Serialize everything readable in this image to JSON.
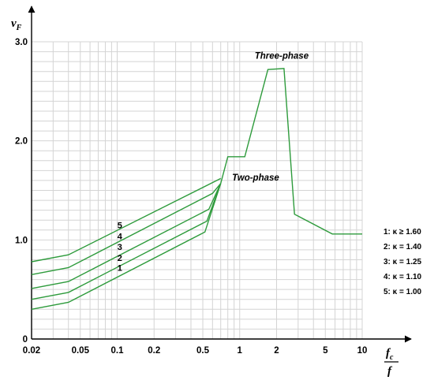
{
  "chart_data": {
    "type": "line",
    "title": "",
    "xlabel": {
      "num": "f",
      "num_sub": "c",
      "den": "f"
    },
    "ylabel": {
      "main": "v",
      "sub": "F"
    },
    "xscale": "log",
    "xlim": [
      0.02,
      10
    ],
    "ylim": [
      0,
      3.0
    ],
    "grid": true,
    "x_ticks": [
      {
        "v": 0.02,
        "label": "0.02"
      },
      {
        "v": 0.05,
        "label": "0.05"
      },
      {
        "v": 0.1,
        "label": "0.1"
      },
      {
        "v": 0.2,
        "label": "0.2"
      },
      {
        "v": 0.5,
        "label": "0.5"
      },
      {
        "v": 1,
        "label": "1"
      },
      {
        "v": 2,
        "label": "2"
      },
      {
        "v": 5,
        "label": "5"
      },
      {
        "v": 10,
        "label": "10"
      }
    ],
    "y_ticks": [
      {
        "v": 0,
        "label": "0"
      },
      {
        "v": 1.0,
        "label": "1.0"
      },
      {
        "v": 2.0,
        "label": "2.0"
      },
      {
        "v": 3.0,
        "label": "3.0"
      }
    ],
    "envelope": {
      "x": [
        0.7,
        0.8,
        1.1,
        1.7,
        2.3,
        2.8,
        5.7,
        10
      ],
      "y": [
        1.57,
        1.84,
        1.84,
        2.72,
        2.73,
        1.26,
        1.06,
        1.06
      ]
    },
    "series": [
      {
        "label": "1",
        "x": [
          0.02,
          0.04,
          0.52,
          0.7
        ],
        "y": [
          0.3,
          0.37,
          1.08,
          1.57
        ],
        "label_at": [
          0.105,
          0.72
        ]
      },
      {
        "label": "2",
        "x": [
          0.02,
          0.04,
          0.54,
          0.7
        ],
        "y": [
          0.4,
          0.47,
          1.19,
          1.57
        ],
        "label_at": [
          0.105,
          0.82
        ]
      },
      {
        "label": "3",
        "x": [
          0.02,
          0.04,
          0.56,
          0.7
        ],
        "y": [
          0.51,
          0.58,
          1.31,
          1.57
        ],
        "label_at": [
          0.105,
          0.93
        ]
      },
      {
        "label": "4",
        "x": [
          0.02,
          0.04,
          0.6,
          0.7
        ],
        "y": [
          0.65,
          0.72,
          1.47,
          1.57
        ],
        "label_at": [
          0.105,
          1.04
        ]
      },
      {
        "label": "5",
        "x": [
          0.02,
          0.04,
          0.7
        ],
        "y": [
          0.78,
          0.85,
          1.62
        ],
        "label_at": [
          0.105,
          1.15
        ]
      }
    ],
    "annotations": [
      {
        "text": "Three-phase",
        "at": [
          2.2,
          2.83
        ]
      },
      {
        "text": "Two-phase",
        "at": [
          1.35,
          1.6
        ]
      }
    ],
    "legend": {
      "placement": "right",
      "items": [
        "1: κ ≥ 1.60",
        "2: κ = 1.40",
        "3: κ = 1.25",
        "4: κ = 1.10",
        "5: κ = 1.00"
      ]
    },
    "colors": {
      "line": "#2e9b3c",
      "grid": "#d4d4d4",
      "axis": "#000000"
    }
  }
}
